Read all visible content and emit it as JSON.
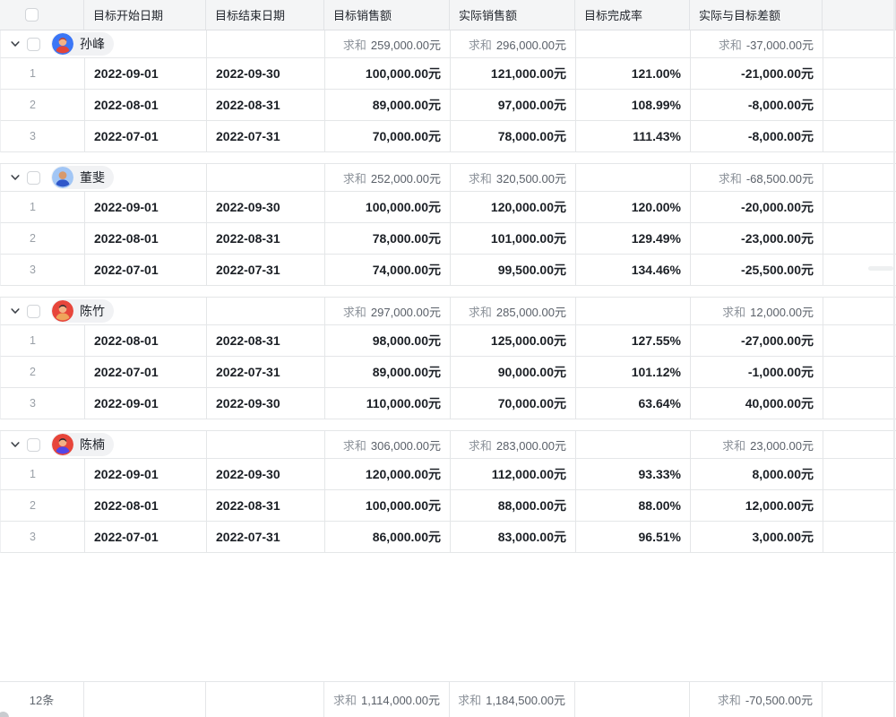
{
  "table": {
    "header": {
      "columns": [
        "目标开始日期",
        "目标结束日期",
        "目标销售额",
        "实际销售额",
        "目标完成率",
        "实际与目标差额"
      ]
    },
    "sum_label": "求和",
    "groups": [
      {
        "name": "孙峰",
        "avatar": {
          "bg": "#3b76f6",
          "skin": "#f3b286",
          "hair": "#b5463b",
          "shirt": "#e2453a",
          "bald": false
        },
        "sums": {
          "target": "259,000.00元",
          "actual": "296,000.00元",
          "diff": "-37,000.00元"
        },
        "rows": [
          {
            "num": "1",
            "start": "2022-09-01",
            "end": "2022-09-30",
            "target": "100,000.00元",
            "actual": "121,000.00元",
            "rate": "121.00%",
            "diff": "-21,000.00元"
          },
          {
            "num": "2",
            "start": "2022-08-01",
            "end": "2022-08-31",
            "target": "89,000.00元",
            "actual": "97,000.00元",
            "rate": "108.99%",
            "diff": "-8,000.00元"
          },
          {
            "num": "3",
            "start": "2022-07-01",
            "end": "2022-07-31",
            "target": "70,000.00元",
            "actual": "78,000.00元",
            "rate": "111.43%",
            "diff": "-8,000.00元"
          }
        ]
      },
      {
        "name": "董斐",
        "avatar": {
          "bg": "#a2c6f5",
          "skin": "#d8996b",
          "hair": "#d8996b",
          "shirt": "#2e56c9",
          "bald": true
        },
        "sums": {
          "target": "252,000.00元",
          "actual": "320,500.00元",
          "diff": "-68,500.00元"
        },
        "rows": [
          {
            "num": "1",
            "start": "2022-09-01",
            "end": "2022-09-30",
            "target": "100,000.00元",
            "actual": "120,000.00元",
            "rate": "120.00%",
            "diff": "-20,000.00元"
          },
          {
            "num": "2",
            "start": "2022-08-01",
            "end": "2022-08-31",
            "target": "78,000.00元",
            "actual": "101,000.00元",
            "rate": "129.49%",
            "diff": "-23,000.00元"
          },
          {
            "num": "3",
            "start": "2022-07-01",
            "end": "2022-07-31",
            "target": "74,000.00元",
            "actual": "99,500.00元",
            "rate": "134.46%",
            "diff": "-25,500.00元"
          }
        ]
      },
      {
        "name": "陈竹",
        "avatar": {
          "bg": "#e7463b",
          "skin": "#f3b286",
          "hair": "#3c2d31",
          "shirt": "#efa45a",
          "bald": false
        },
        "sums": {
          "target": "297,000.00元",
          "actual": "285,000.00元",
          "diff": "12,000.00元"
        },
        "rows": [
          {
            "num": "1",
            "start": "2022-08-01",
            "end": "2022-08-31",
            "target": "98,000.00元",
            "actual": "125,000.00元",
            "rate": "127.55%",
            "diff": "-27,000.00元"
          },
          {
            "num": "2",
            "start": "2022-07-01",
            "end": "2022-07-31",
            "target": "89,000.00元",
            "actual": "90,000.00元",
            "rate": "101.12%",
            "diff": "-1,000.00元"
          },
          {
            "num": "3",
            "start": "2022-09-01",
            "end": "2022-09-30",
            "target": "110,000.00元",
            "actual": "70,000.00元",
            "rate": "63.64%",
            "diff": "40,000.00元"
          }
        ]
      },
      {
        "name": "陈楠",
        "avatar": {
          "bg": "#e7463b",
          "skin": "#f3b286",
          "hair": "#34282e",
          "shirt": "#5246e8",
          "bald": false
        },
        "sums": {
          "target": "306,000.00元",
          "actual": "283,000.00元",
          "diff": "23,000.00元"
        },
        "rows": [
          {
            "num": "1",
            "start": "2022-09-01",
            "end": "2022-09-30",
            "target": "120,000.00元",
            "actual": "112,000.00元",
            "rate": "93.33%",
            "diff": "8,000.00元"
          },
          {
            "num": "2",
            "start": "2022-08-01",
            "end": "2022-08-31",
            "target": "100,000.00元",
            "actual": "88,000.00元",
            "rate": "88.00%",
            "diff": "12,000.00元"
          },
          {
            "num": "3",
            "start": "2022-07-01",
            "end": "2022-07-31",
            "target": "86,000.00元",
            "actual": "83,000.00元",
            "rate": "96.51%",
            "diff": "3,000.00元"
          }
        ]
      }
    ],
    "footer": {
      "count": "12条",
      "target": "1,114,000.00元",
      "actual": "1,184,500.00元",
      "diff": "-70,500.00元"
    }
  }
}
